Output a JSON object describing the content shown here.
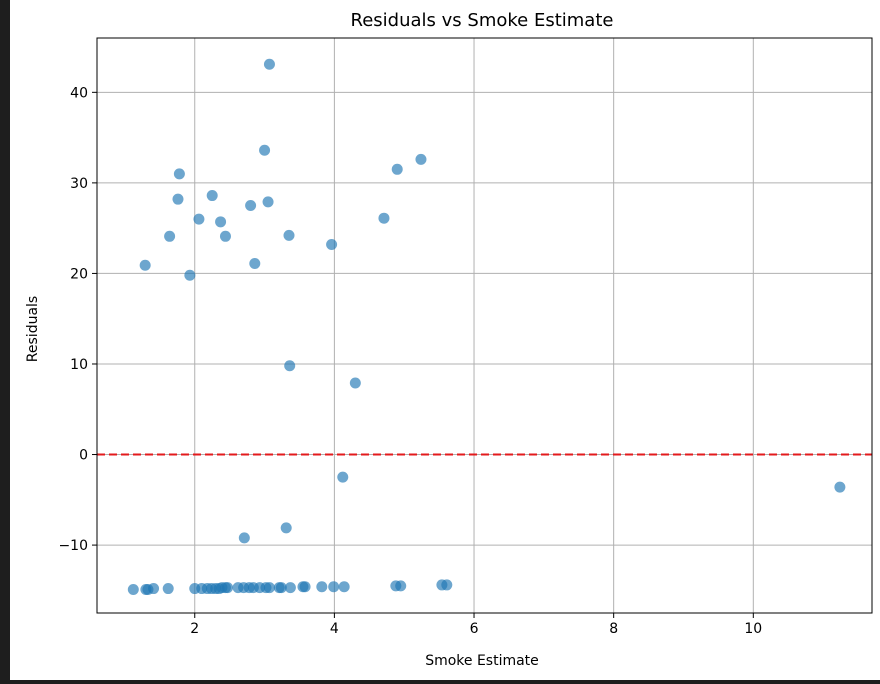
{
  "chart_data": {
    "type": "scatter",
    "title": "Residuals vs Smoke Estimate",
    "xlabel": "Smoke Estimate",
    "ylabel": "Residuals",
    "xlim": [
      0.6,
      11.7
    ],
    "ylim": [
      -17.5,
      46.0
    ],
    "xticks": [
      2,
      4,
      6,
      8,
      10
    ],
    "yticks": [
      -10,
      0,
      10,
      20,
      30,
      40
    ],
    "ytick_labels": [
      "−10",
      "0",
      "10",
      "20",
      "30",
      "40"
    ],
    "grid": true,
    "reference_line": {
      "y": 0,
      "color": "#e31a1c",
      "style": "dashed"
    },
    "point_color": "#1f77b4",
    "point_alpha": 0.65,
    "points": [
      [
        3.07,
        43.1
      ],
      [
        3.0,
        33.6
      ],
      [
        5.24,
        32.6
      ],
      [
        1.78,
        31.0
      ],
      [
        4.9,
        31.5
      ],
      [
        1.76,
        28.2
      ],
      [
        2.25,
        28.6
      ],
      [
        3.05,
        27.9
      ],
      [
        2.8,
        27.5
      ],
      [
        4.71,
        26.1
      ],
      [
        2.06,
        26.0
      ],
      [
        2.37,
        25.7
      ],
      [
        1.64,
        24.1
      ],
      [
        2.44,
        24.1
      ],
      [
        3.35,
        24.2
      ],
      [
        3.96,
        23.2
      ],
      [
        1.29,
        20.9
      ],
      [
        2.86,
        21.1
      ],
      [
        1.93,
        19.8
      ],
      [
        3.36,
        9.8
      ],
      [
        4.3,
        7.9
      ],
      [
        4.12,
        -2.5
      ],
      [
        11.24,
        -3.6
      ],
      [
        3.31,
        -8.1
      ],
      [
        2.71,
        -9.2
      ],
      [
        1.12,
        -14.9
      ],
      [
        1.3,
        -14.9
      ],
      [
        1.33,
        -14.9
      ],
      [
        1.41,
        -14.8
      ],
      [
        1.62,
        -14.8
      ],
      [
        2.0,
        -14.8
      ],
      [
        2.1,
        -14.8
      ],
      [
        2.18,
        -14.8
      ],
      [
        2.24,
        -14.8
      ],
      [
        2.3,
        -14.8
      ],
      [
        2.35,
        -14.8
      ],
      [
        2.39,
        -14.7
      ],
      [
        2.44,
        -14.7
      ],
      [
        2.47,
        -14.7
      ],
      [
        2.62,
        -14.7
      ],
      [
        2.7,
        -14.7
      ],
      [
        2.78,
        -14.7
      ],
      [
        2.84,
        -14.7
      ],
      [
        2.93,
        -14.7
      ],
      [
        3.02,
        -14.7
      ],
      [
        3.07,
        -14.7
      ],
      [
        3.21,
        -14.7
      ],
      [
        3.24,
        -14.7
      ],
      [
        3.37,
        -14.7
      ],
      [
        3.55,
        -14.6
      ],
      [
        3.58,
        -14.6
      ],
      [
        3.82,
        -14.6
      ],
      [
        3.99,
        -14.6
      ],
      [
        4.14,
        -14.6
      ],
      [
        4.88,
        -14.5
      ],
      [
        4.95,
        -14.5
      ],
      [
        5.54,
        -14.4
      ],
      [
        5.61,
        -14.4
      ]
    ]
  }
}
